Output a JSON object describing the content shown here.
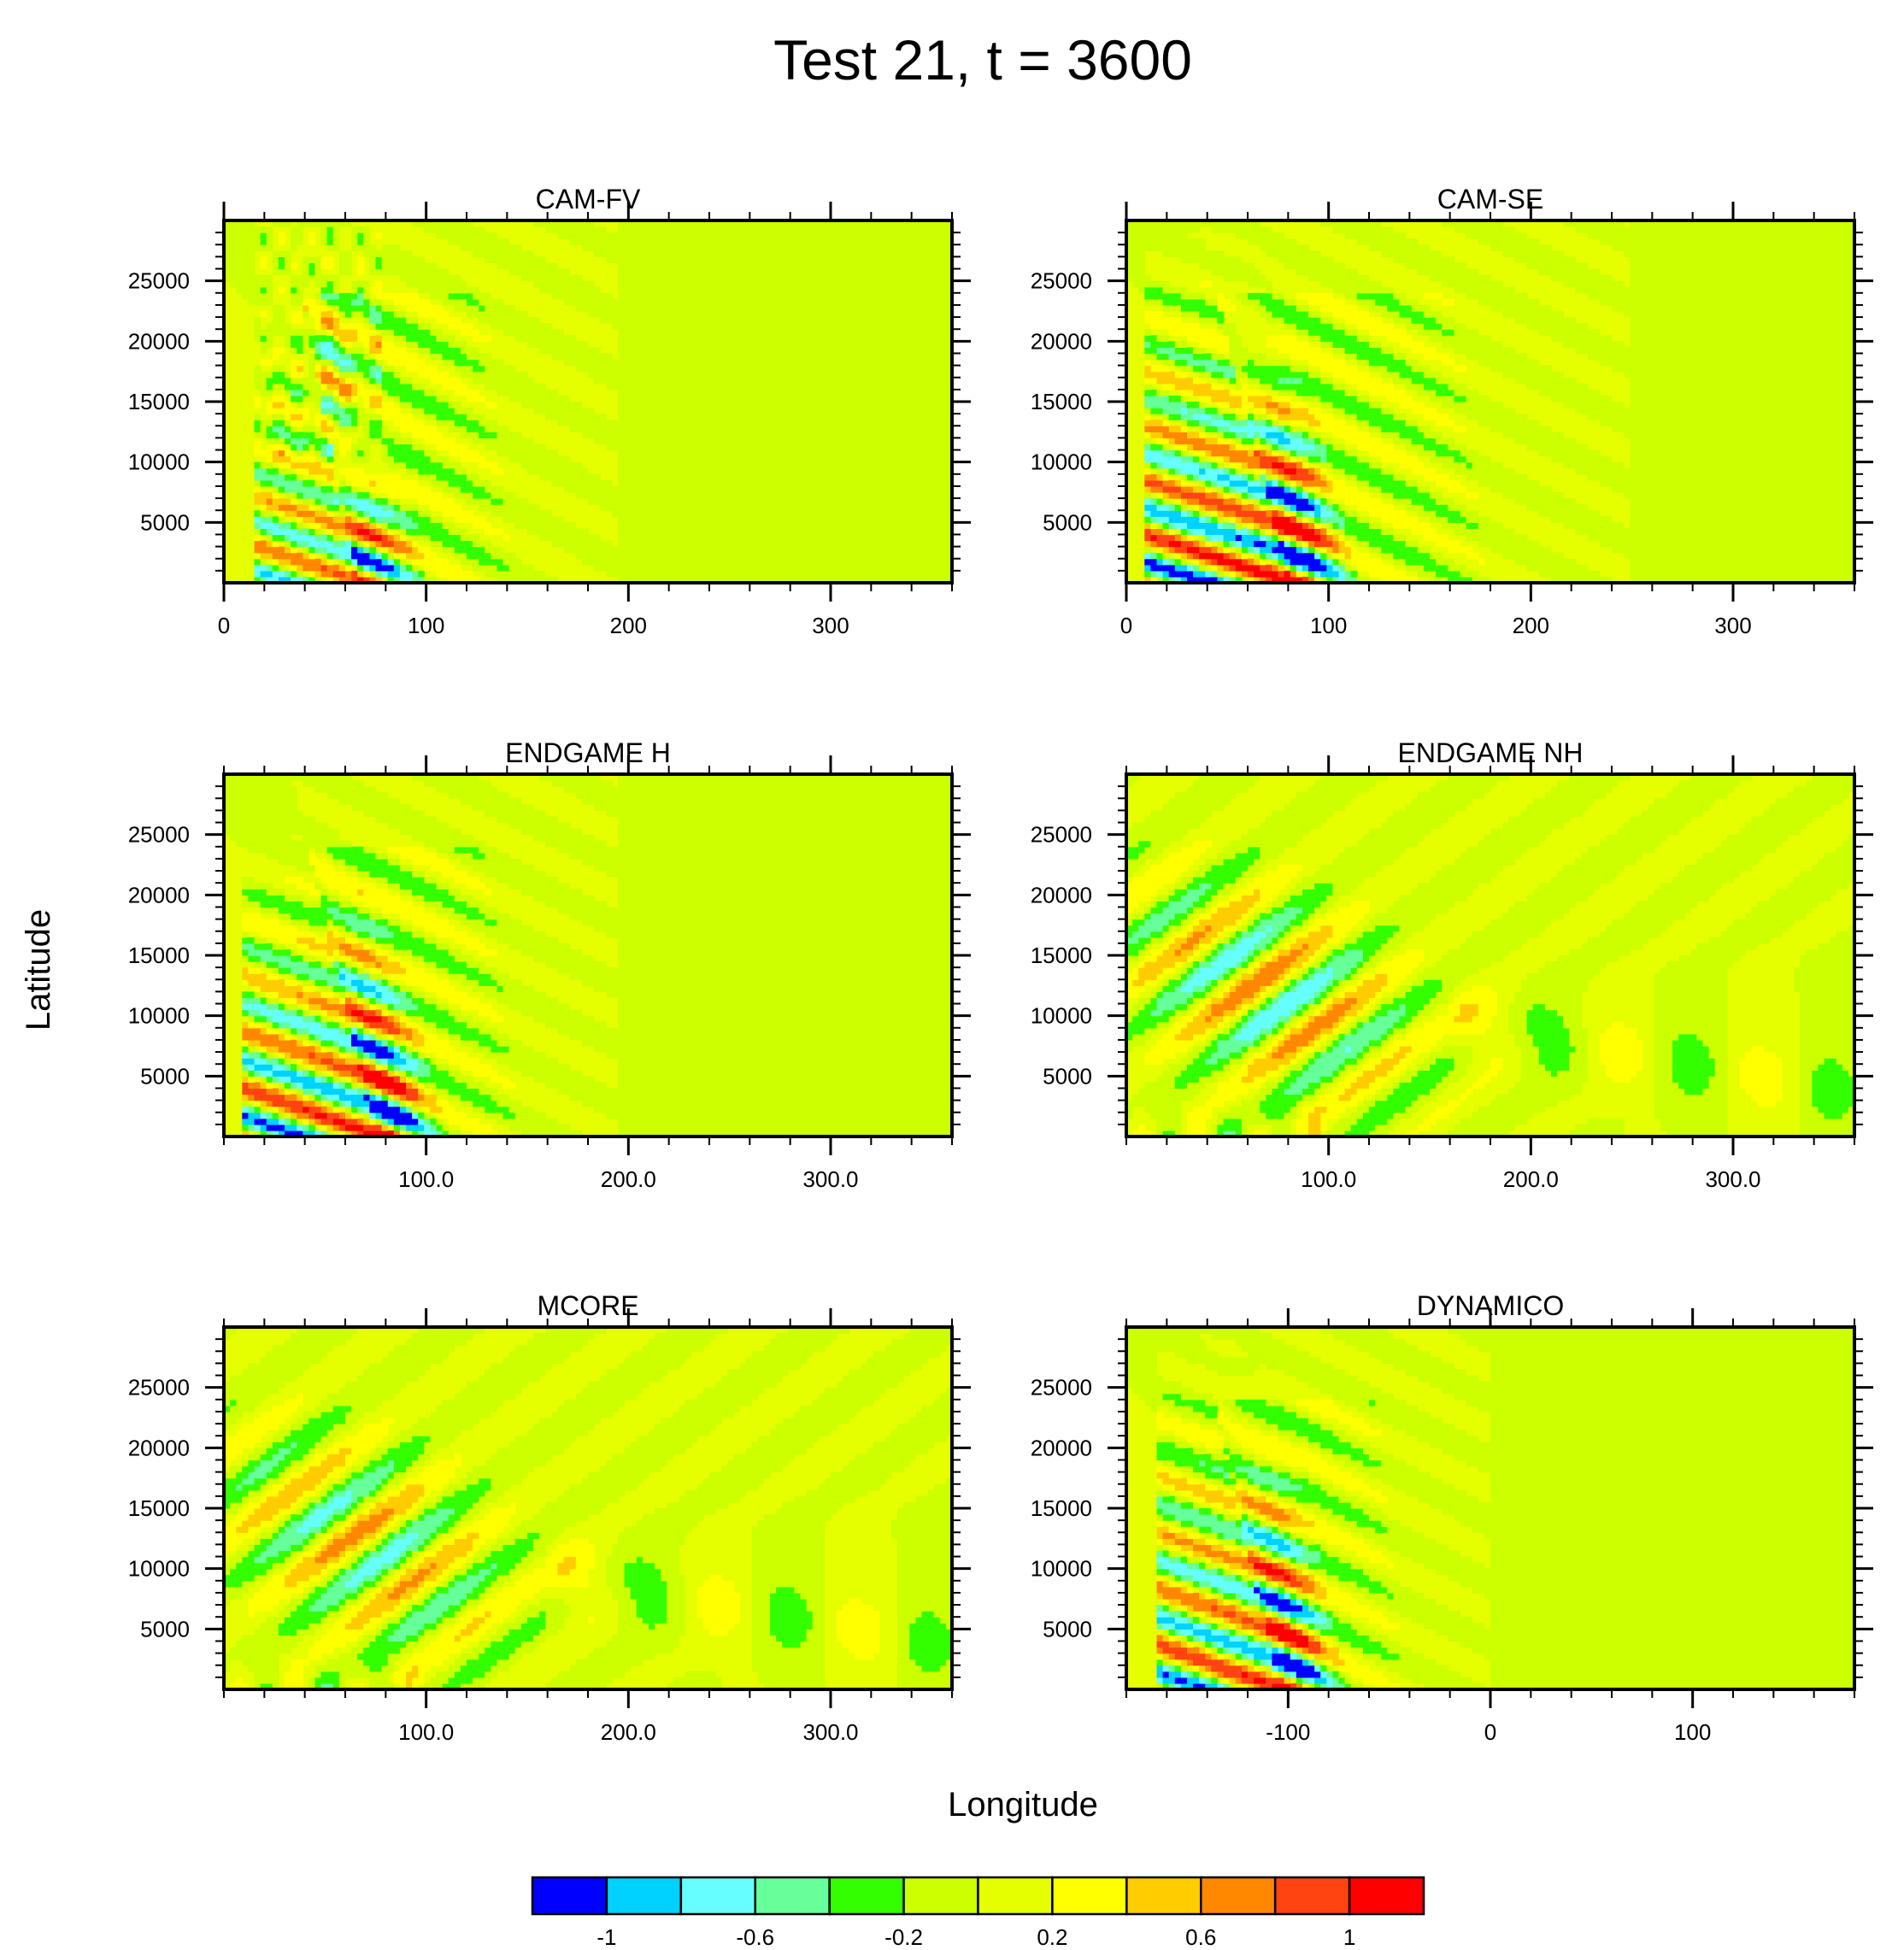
{
  "figure": {
    "title": "Test 21, t = 3600",
    "xlabel": "Longitude",
    "ylabel": "Latitude"
  },
  "colorbar": {
    "colors": [
      "#0000ff",
      "#00d2ff",
      "#66ffff",
      "#66ff99",
      "#33ff00",
      "#ccff00",
      "#e6ff00",
      "#ffff00",
      "#ffcc00",
      "#ff8800",
      "#ff4411",
      "#ff0000"
    ],
    "tick_labels": [
      "-1",
      "-0.6",
      "-0.2",
      "0.2",
      "0.6",
      "1"
    ],
    "tick_values": [
      -1,
      -0.6,
      -0.2,
      0.2,
      0.6,
      1
    ]
  },
  "chart_data": [
    {
      "type": "heatmap",
      "title": "CAM-FV",
      "xlim": [
        0,
        360
      ],
      "ylim": [
        0,
        30000
      ],
      "xticks": [
        0,
        100,
        200,
        300
      ],
      "xtick_labels": [
        "0",
        "100",
        "200",
        "300"
      ],
      "yticks": [
        5000,
        10000,
        15000,
        20000,
        25000
      ],
      "ytick_labels": [
        "5000",
        "10000",
        "15000",
        "20000",
        "25000"
      ],
      "pattern": {
        "x0": 20,
        "front": 75,
        "tail_end": 195,
        "zmax": 23000,
        "amp": 0.85,
        "tilt": 0.3,
        "kx": 0.09,
        "kz": 0.0012,
        "noise": 0.25
      }
    },
    {
      "type": "heatmap",
      "title": "CAM-SE",
      "xlim": [
        0,
        360
      ],
      "ylim": [
        0,
        30000
      ],
      "xticks": [
        0,
        100,
        200,
        300
      ],
      "xtick_labels": [
        "0",
        "100",
        "200",
        "300"
      ],
      "yticks": [
        5000,
        10000,
        15000,
        20000,
        25000
      ],
      "ytick_labels": [
        "5000",
        "10000",
        "15000",
        "20000",
        "25000"
      ],
      "pattern": {
        "x0": 15,
        "front": 90,
        "tail_end": 250,
        "zmax": 29000,
        "amp": 1.15,
        "tilt": 0.55,
        "kx": 0.075,
        "kz": 0.0009,
        "noise": 0
      }
    },
    {
      "type": "heatmap",
      "title": "ENDGAME H",
      "xlim": [
        0,
        360
      ],
      "ylim": [
        0,
        30000
      ],
      "xticks": [
        100,
        200,
        300
      ],
      "xtick_labels": [
        "100.0",
        "200.0",
        "300.0"
      ],
      "yticks": [
        5000,
        10000,
        15000,
        20000,
        25000
      ],
      "ytick_labels": [
        "5000",
        "10000",
        "15000",
        "20000",
        "25000"
      ],
      "pattern": {
        "x0": 15,
        "front": 85,
        "tail_end": 195,
        "zmax": 25000,
        "amp": 1.1,
        "tilt": 0.5,
        "kx": 0.08,
        "kz": 0.0009,
        "noise": 0
      }
    },
    {
      "type": "heatmap",
      "title": "ENDGAME NH",
      "xlim": [
        0,
        360
      ],
      "ylim": [
        0,
        30000
      ],
      "xticks": [
        100,
        200,
        300
      ],
      "xtick_labels": [
        "100.0",
        "200.0",
        "300.0"
      ],
      "yticks": [
        5000,
        10000,
        15000,
        20000,
        25000
      ],
      "ytick_labels": [
        "5000",
        "10000",
        "15000",
        "20000",
        "25000"
      ],
      "pattern": {
        "kind": "nh",
        "amp": 0.8
      }
    },
    {
      "type": "heatmap",
      "title": "MCORE",
      "xlim": [
        0,
        360
      ],
      "ylim": [
        0,
        30000
      ],
      "xticks": [
        100,
        200,
        300
      ],
      "xtick_labels": [
        "100.0",
        "200.0",
        "300.0"
      ],
      "yticks": [
        5000,
        10000,
        15000,
        20000,
        25000
      ],
      "ytick_labels": [
        "5000",
        "10000",
        "15000",
        "20000",
        "25000"
      ],
      "pattern": {
        "kind": "nh",
        "amp": 0.72
      }
    },
    {
      "type": "heatmap",
      "title": "DYNAMICO",
      "xlim": [
        -180,
        180
      ],
      "ylim": [
        0,
        30000
      ],
      "xticks": [
        -100,
        0,
        100
      ],
      "xtick_labels": [
        "-100",
        "0",
        "100"
      ],
      "yticks": [
        5000,
        10000,
        15000,
        20000,
        25000
      ],
      "ytick_labels": [
        "5000",
        "10000",
        "15000",
        "20000",
        "25000"
      ],
      "pattern": {
        "x0": 20,
        "front": 85,
        "tail_end": 180,
        "zmax": 29000,
        "amp": 1.05,
        "tilt": 0.5,
        "kx": 0.08,
        "kz": 0.0009,
        "noise": 0
      }
    }
  ]
}
